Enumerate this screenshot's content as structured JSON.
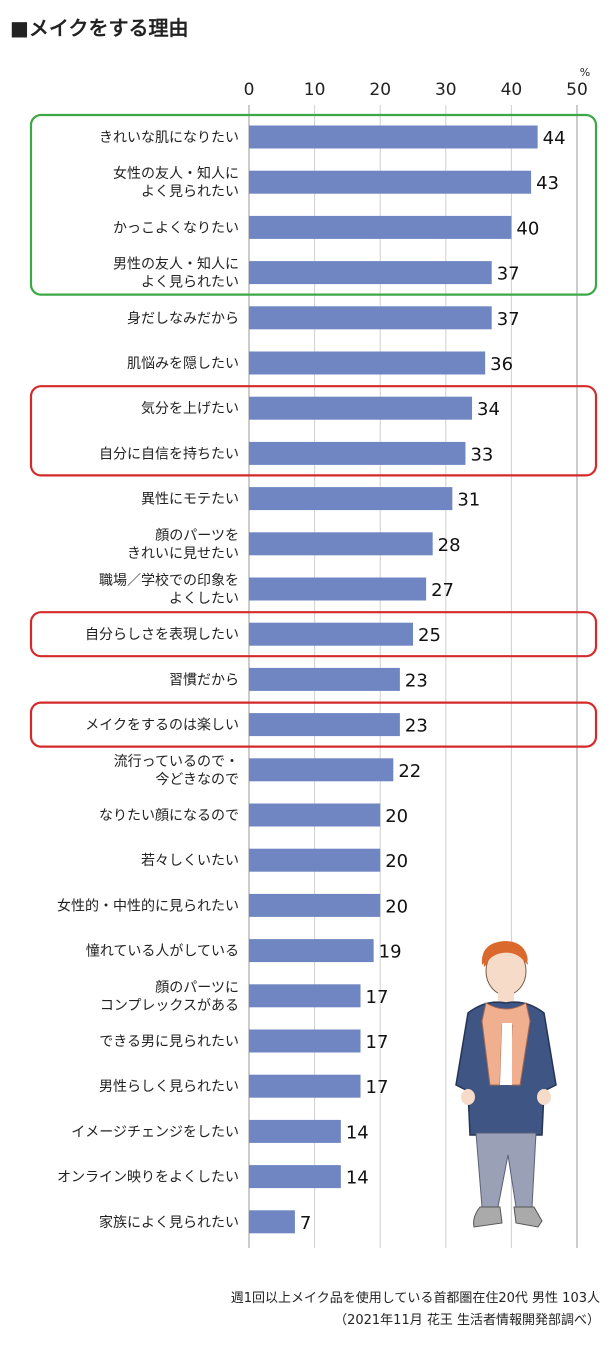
{
  "title": "■メイクをする理由",
  "footnote": {
    "line1": "週1回以上メイク品を使用している首都圏在住20代 男性 103人",
    "line2": "（2021年11月 花王 生活者情報開発部調べ）"
  },
  "colors": {
    "bar": "#6f86c2",
    "green_box": "#3aa845",
    "red_box": "#d42a2a",
    "grid": "#d0d0d0"
  },
  "chart_data": {
    "type": "bar",
    "orientation": "horizontal",
    "unit": "%",
    "xlim": [
      0,
      50
    ],
    "ticks": [
      "0",
      "10",
      "20",
      "30",
      "40",
      "50"
    ],
    "grid": true,
    "categories": [
      "きれいな肌になりたい",
      "女性の友人・知人に\nよく見られたい",
      "かっこよくなりたい",
      "男性の友人・知人に\nよく見られたい",
      "身だしなみだから",
      "肌悩みを隠したい",
      "気分を上げたい",
      "自分に自信を持ちたい",
      "異性にモテたい",
      "顔のパーツを\nきれいに見せたい",
      "職場／学校での印象を\nよくしたい",
      "自分らしさを表現したい",
      "習慣だから",
      "メイクをするのは楽しい",
      "流行っているので・\n今どきなので",
      "なりたい顔になるので",
      "若々しくいたい",
      "女性的・中性的に見られたい",
      "憧れている人がしている",
      "顔のパーツに\nコンプレックスがある",
      "できる男に見られたい",
      "男性らしく見られたい",
      "イメージチェンジをしたい",
      "オンライン映りをよくしたい",
      "家族によく見られたい"
    ],
    "values": [
      44,
      43,
      40,
      37,
      37,
      36,
      34,
      33,
      31,
      28,
      27,
      25,
      23,
      23,
      22,
      20,
      20,
      20,
      19,
      17,
      17,
      17,
      14,
      14,
      7
    ],
    "highlight_groups": [
      {
        "color": "green",
        "rows": [
          0,
          3
        ]
      },
      {
        "color": "red",
        "rows": [
          6,
          7
        ]
      },
      {
        "color": "red",
        "rows": [
          11,
          11
        ]
      },
      {
        "color": "red",
        "rows": [
          13,
          13
        ]
      }
    ]
  }
}
